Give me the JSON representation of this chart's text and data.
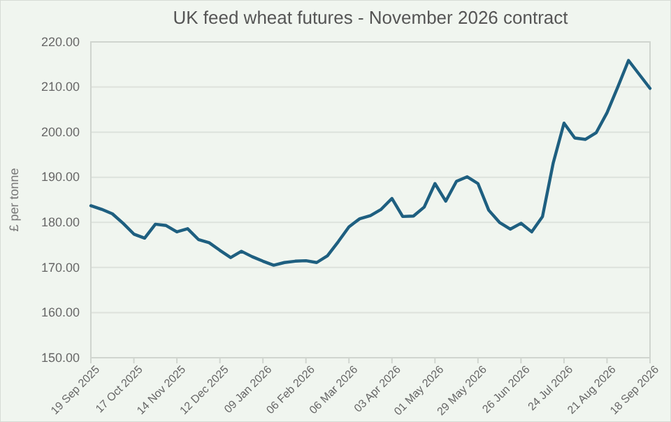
{
  "chart_data": {
    "type": "line",
    "title": "UK feed wheat futures - November 2026 contract",
    "ylabel": "£ per tonne",
    "x": [
      "2025-09-19",
      "2025-09-26",
      "2025-10-03",
      "2025-10-10",
      "2025-10-17",
      "2025-10-24",
      "2025-10-31",
      "2025-11-07",
      "2025-11-14",
      "2025-11-21",
      "2025-11-28",
      "2025-12-05",
      "2025-12-12",
      "2025-12-19",
      "2025-12-26",
      "2026-01-02",
      "2026-01-09",
      "2026-01-16",
      "2026-01-23",
      "2026-01-30",
      "2026-02-06",
      "2026-02-13",
      "2026-02-20",
      "2026-02-27",
      "2026-03-06",
      "2026-03-13",
      "2026-03-20",
      "2026-03-27",
      "2026-04-03",
      "2026-04-10",
      "2026-04-17",
      "2026-04-24",
      "2026-05-01",
      "2026-05-08",
      "2026-05-15",
      "2026-05-22",
      "2026-05-29",
      "2026-06-05",
      "2026-06-12",
      "2026-06-19",
      "2026-06-26",
      "2026-07-03",
      "2026-07-10",
      "2026-07-17",
      "2026-07-24",
      "2026-07-31",
      "2026-08-07",
      "2026-08-14",
      "2026-08-21",
      "2026-08-28",
      "2026-09-04",
      "2026-09-11",
      "2026-09-18"
    ],
    "series": [
      {
        "color": "#1e5f80",
        "values": [
          183.7,
          182.9,
          181.9,
          179.8,
          177.4,
          176.5,
          179.6,
          179.3,
          177.9,
          178.6,
          176.2,
          175.5,
          173.8,
          172.2,
          173.6,
          172.4,
          171.4,
          170.5,
          171.1,
          171.4,
          171.5,
          171.1,
          172.6,
          175.7,
          179.0,
          180.8,
          181.5,
          182.9,
          185.3,
          181.3,
          181.4,
          183.4,
          188.6,
          184.7,
          189.1,
          190.1,
          188.6,
          182.7,
          180.0,
          178.5,
          179.8,
          177.9,
          181.3,
          193.2,
          202.0,
          198.7,
          198.4,
          199.9,
          204.3,
          210.0,
          215.9,
          212.8,
          209.7
        ]
      }
    ],
    "xlim": [
      "2025-09-19",
      "2026-09-18"
    ],
    "xticks": [
      {
        "value": "2025-09-19",
        "label": "19 Sep 2025"
      },
      {
        "value": "2025-10-17",
        "label": "17 Oct 2025"
      },
      {
        "value": "2025-11-14",
        "label": "14 Nov 2025"
      },
      {
        "value": "2025-12-12",
        "label": "12 Dec 2025"
      },
      {
        "value": "2026-01-09",
        "label": "09 Jan 2026"
      },
      {
        "value": "2026-02-06",
        "label": "06 Feb 2026"
      },
      {
        "value": "2026-03-06",
        "label": "06 Mar 2026"
      },
      {
        "value": "2026-04-03",
        "label": "03 Apr 2026"
      },
      {
        "value": "2026-05-01",
        "label": "01 May 2026"
      },
      {
        "value": "2026-05-29",
        "label": "29 May 2026"
      },
      {
        "value": "2026-06-26",
        "label": "26 Jun 2026"
      },
      {
        "value": "2026-07-24",
        "label": "24 Jul 2026"
      },
      {
        "value": "2026-08-21",
        "label": "21 Aug 2026"
      },
      {
        "value": "2026-09-18",
        "label": "18 Sep 2026"
      }
    ],
    "ylim": [
      150,
      220
    ],
    "yticks": [
      {
        "value": 150,
        "label": "150.00"
      },
      {
        "value": 160,
        "label": "160.00"
      },
      {
        "value": 170,
        "label": "170.00"
      },
      {
        "value": 180,
        "label": "180.00"
      },
      {
        "value": 190,
        "label": "190.00"
      },
      {
        "value": 200,
        "label": "200.00"
      },
      {
        "value": 210,
        "label": "210.00"
      },
      {
        "value": 220,
        "label": "220.00"
      }
    ],
    "grid": "y",
    "line_style": "solid",
    "marker": "none"
  }
}
